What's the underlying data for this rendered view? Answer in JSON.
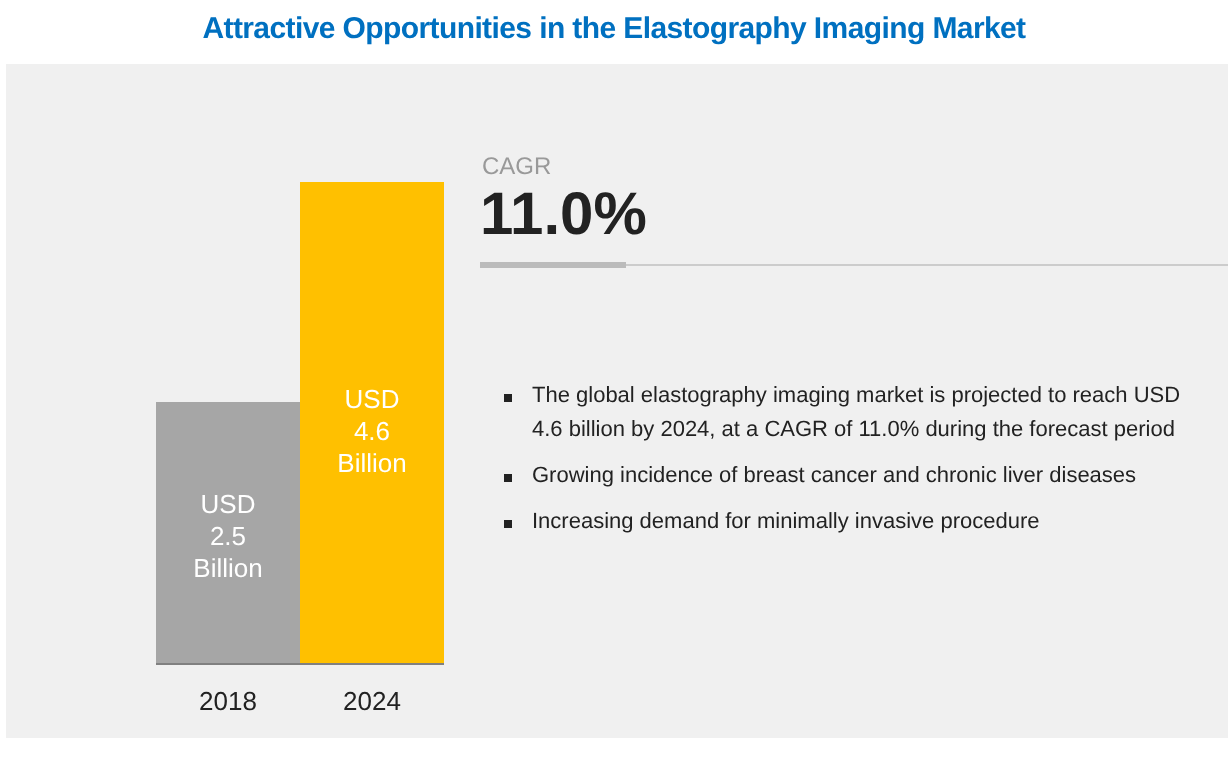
{
  "chart_data": {
    "type": "bar",
    "title": "Attractive Opportunities in the Elastography Imaging Market",
    "categories": [
      "2018",
      "2024"
    ],
    "values": [
      2.5,
      4.6
    ],
    "colors": [
      "#a6a6a6",
      "#ffc000"
    ],
    "value_labels": [
      "USD 2.5 Billion",
      "USD 4.6 Billion"
    ],
    "annotations": [
      "CAGR",
      "11.0%",
      "The global elastography imaging market is projected to reach USD 4.6 billion by 2024, at a CAGR of 11.0% during the forecast period",
      "Growing incidence of breast cancer and chronic liver diseases",
      "Increasing demand for minimally invasive procedure"
    ],
    "grid": false,
    "legend": false
  }
}
